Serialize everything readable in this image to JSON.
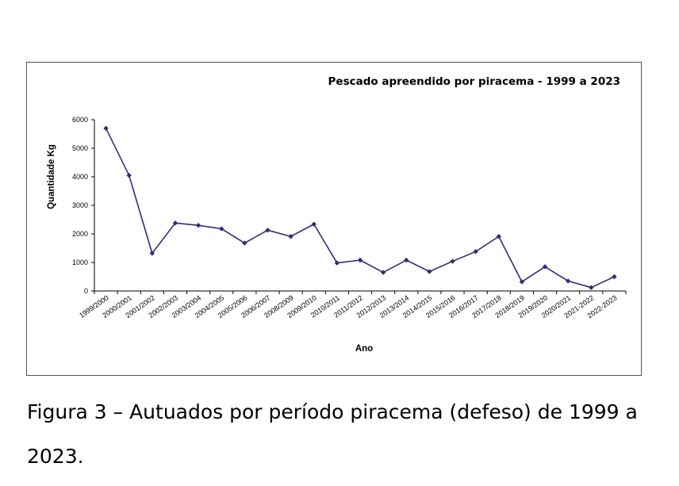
{
  "chart_data": {
    "type": "line",
    "title": "Pescado apreendido por piracema - 1999 a 2023",
    "xlabel": "Ano",
    "ylabel": "Quantidade Kg",
    "ylim": [
      0,
      6000
    ],
    "yticks": [
      "0",
      "1000",
      "2000",
      "3000",
      "4000",
      "5000",
      "6000"
    ],
    "grid": false,
    "categories": [
      "1999/2000",
      "2000/2001",
      "2001/2002",
      "2002/2003",
      "2003/2004",
      "2004/2005",
      "2005/2006",
      "2006/2007",
      "2008/2009",
      "2009/2010",
      "2010/2011",
      "2011/2012",
      "2012/2013",
      "2013/2014",
      "2014/2015",
      "2015/2016",
      "2016/2017",
      "2017/2018",
      "2018/2019",
      "2019/2020",
      "2020/2021",
      "2021-2022",
      "2022-2023"
    ],
    "series": [
      {
        "values": [
          5700,
          4050,
          1320,
          2380,
          2300,
          2180,
          1680,
          2130,
          1910,
          2340,
          980,
          1080,
          650,
          1080,
          680,
          1040,
          1380,
          1910,
          320,
          850,
          350,
          120,
          500
        ],
        "color": "#2e2e7a"
      }
    ]
  },
  "caption": {
    "text": "Figura 3 – Autuados por período piracema (defeso) de 1999 a 2023."
  }
}
